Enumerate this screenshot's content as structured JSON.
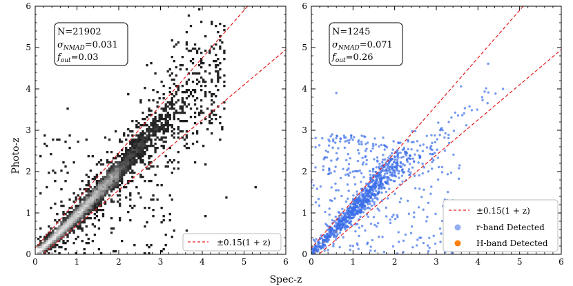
{
  "chart_data": [
    {
      "type": "heatmap",
      "xlabel": "Spec-z",
      "ylabel": "Photo-z",
      "xlim": [
        0,
        6
      ],
      "ylim": [
        0,
        6
      ],
      "x_ticks": [
        "0",
        "1",
        "2",
        "3",
        "4",
        "5",
        "6"
      ],
      "y_ticks": [
        "0",
        "1",
        "2",
        "3",
        "4",
        "5",
        "6"
      ],
      "stats": {
        "n": "N=21902",
        "sigma": "σNMAD=0.031",
        "fout": "fout=0.03"
      },
      "outlier_bounds": {
        "label": "±0.15(1 + z)",
        "color": "#e31a1c",
        "style": "dashed"
      },
      "legend_position": "lower-right",
      "colormap": "greys",
      "diagonal_trend": [
        [
          0.1,
          0.1
        ],
        [
          0.5,
          0.45
        ],
        [
          1.0,
          0.95
        ],
        [
          1.5,
          1.5
        ],
        [
          2.0,
          2.0
        ],
        [
          2.5,
          2.6
        ],
        [
          3.0,
          3.2
        ],
        [
          3.5,
          3.6
        ],
        [
          4.0,
          3.95
        ],
        [
          4.5,
          4.4
        ]
      ],
      "outlier_points": [
        [
          0.2,
          2.9
        ],
        [
          0.3,
          2.6
        ],
        [
          0.15,
          2.4
        ],
        [
          0.6,
          2.8
        ],
        [
          0.9,
          2.2
        ],
        [
          0.75,
          3.5
        ],
        [
          0.4,
          2.0
        ],
        [
          1.0,
          2.7
        ],
        [
          1.3,
          2.0
        ],
        [
          1.5,
          2.2
        ],
        [
          2.2,
          1.0
        ],
        [
          2.6,
          0.7
        ],
        [
          3.0,
          1.1
        ],
        [
          3.3,
          0.4
        ],
        [
          3.6,
          0.6
        ],
        [
          4.1,
          0.9
        ],
        [
          4.6,
          1.4
        ],
        [
          5.3,
          1.6
        ],
        [
          2.8,
          0.2
        ],
        [
          1.8,
          0.5
        ],
        [
          0.9,
          0.3
        ],
        [
          2.0,
          2.8
        ]
      ]
    },
    {
      "type": "scatter",
      "xlabel": "Spec-z",
      "ylabel": "",
      "xlim": [
        0,
        6
      ],
      "ylim": [
        0,
        6
      ],
      "x_ticks": [
        "0",
        "1",
        "2",
        "3",
        "4",
        "5",
        "6"
      ],
      "y_ticks": [
        "0",
        "1",
        "2",
        "3",
        "4",
        "5",
        "6"
      ],
      "stats": {
        "n": "N=1245",
        "sigma": "σNMAD=0.071",
        "fout": "fout=0.26"
      },
      "series": [
        {
          "name": "r-band Detected",
          "color": "#3a6ee8"
        },
        {
          "name": "H-band Detected",
          "color": "#ff7f0e"
        }
      ],
      "outlier_bounds": {
        "label": "±0.15(1 + z)",
        "color": "#e31a1c",
        "style": "dashed"
      },
      "legend_position": "lower-right",
      "diagonal_trend": [
        [
          0.05,
          0.05
        ],
        [
          0.5,
          0.55
        ],
        [
          1.0,
          1.05
        ],
        [
          1.5,
          1.6
        ],
        [
          2.0,
          2.15
        ],
        [
          2.5,
          2.45
        ],
        [
          2.8,
          2.6
        ]
      ],
      "outlier_points": [
        [
          0.6,
          3.9
        ],
        [
          0.5,
          2.9
        ],
        [
          0.7,
          2.8
        ],
        [
          0.3,
          2.3
        ],
        [
          1.0,
          2.0
        ],
        [
          0.9,
          1.9
        ],
        [
          1.3,
          2.5
        ],
        [
          2.0,
          1.9
        ],
        [
          2.1,
          0.3
        ],
        [
          2.6,
          0.4
        ],
        [
          3.1,
          0.3
        ],
        [
          3.5,
          0.9
        ],
        [
          4.0,
          0.5
        ],
        [
          3.9,
          0.1
        ],
        [
          1.0,
          0.2
        ],
        [
          1.5,
          0.9
        ],
        [
          0.4,
          0.1
        ],
        [
          4.6,
          4.0
        ],
        [
          4.1,
          3.8
        ],
        [
          3.3,
          3.2
        ],
        [
          0.1,
          2.1
        ],
        [
          1.7,
          1.3
        ]
      ]
    }
  ]
}
